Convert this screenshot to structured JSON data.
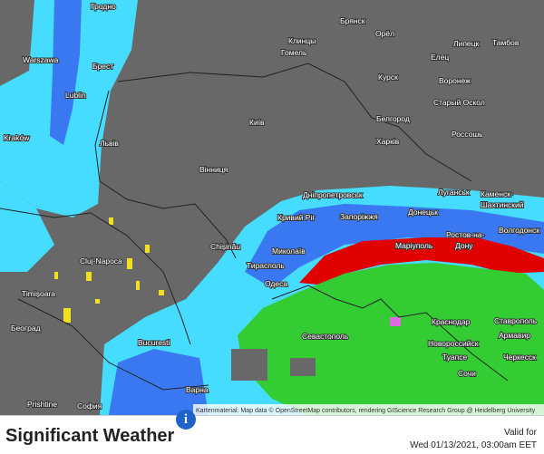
{
  "title": "Significant Weather",
  "valid_label": "Valid for",
  "valid_time": "Wed 01/13/2021, 03:00am EET",
  "attribution": "Kartenmaterial: Map data © OpenStreetMap contributors, rendering GIScience Research Group @ Heidelberg University",
  "cities": [
    "Гродно",
    "Брянск",
    "Орёл",
    "Клинцы",
    "Липецк",
    "Тамбов",
    "Warszawa",
    "Брест",
    "Гомель",
    "Елец",
    "Курск",
    "Воронеж",
    "Lublin",
    "Київ",
    "Старый Оскол",
    "Белгород",
    "Kraków",
    "Львів",
    "Харків",
    "Россошь",
    "Вінниця",
    "Дніпропетровськ",
    "Луганськ",
    "Каменск-",
    "Шахтинский",
    "Кривий Ріг",
    "Запоріжжя",
    "Донецьк",
    "Волгодонск",
    "Chișinău",
    "Миколаїв",
    "Маріуполь",
    "Ростов-на-",
    "Дону",
    "Cluj-Napoca",
    "Тирасполь",
    "Одеса",
    "Timișoara",
    "Краснодар",
    "Ставрополь",
    "Београд",
    "Севастополь",
    "Армавир",
    "Bucuresti",
    "Новороссийск",
    "Туапсе",
    "Черкесск",
    "Сочи",
    "Варна",
    "Prishtine",
    "София"
  ]
}
